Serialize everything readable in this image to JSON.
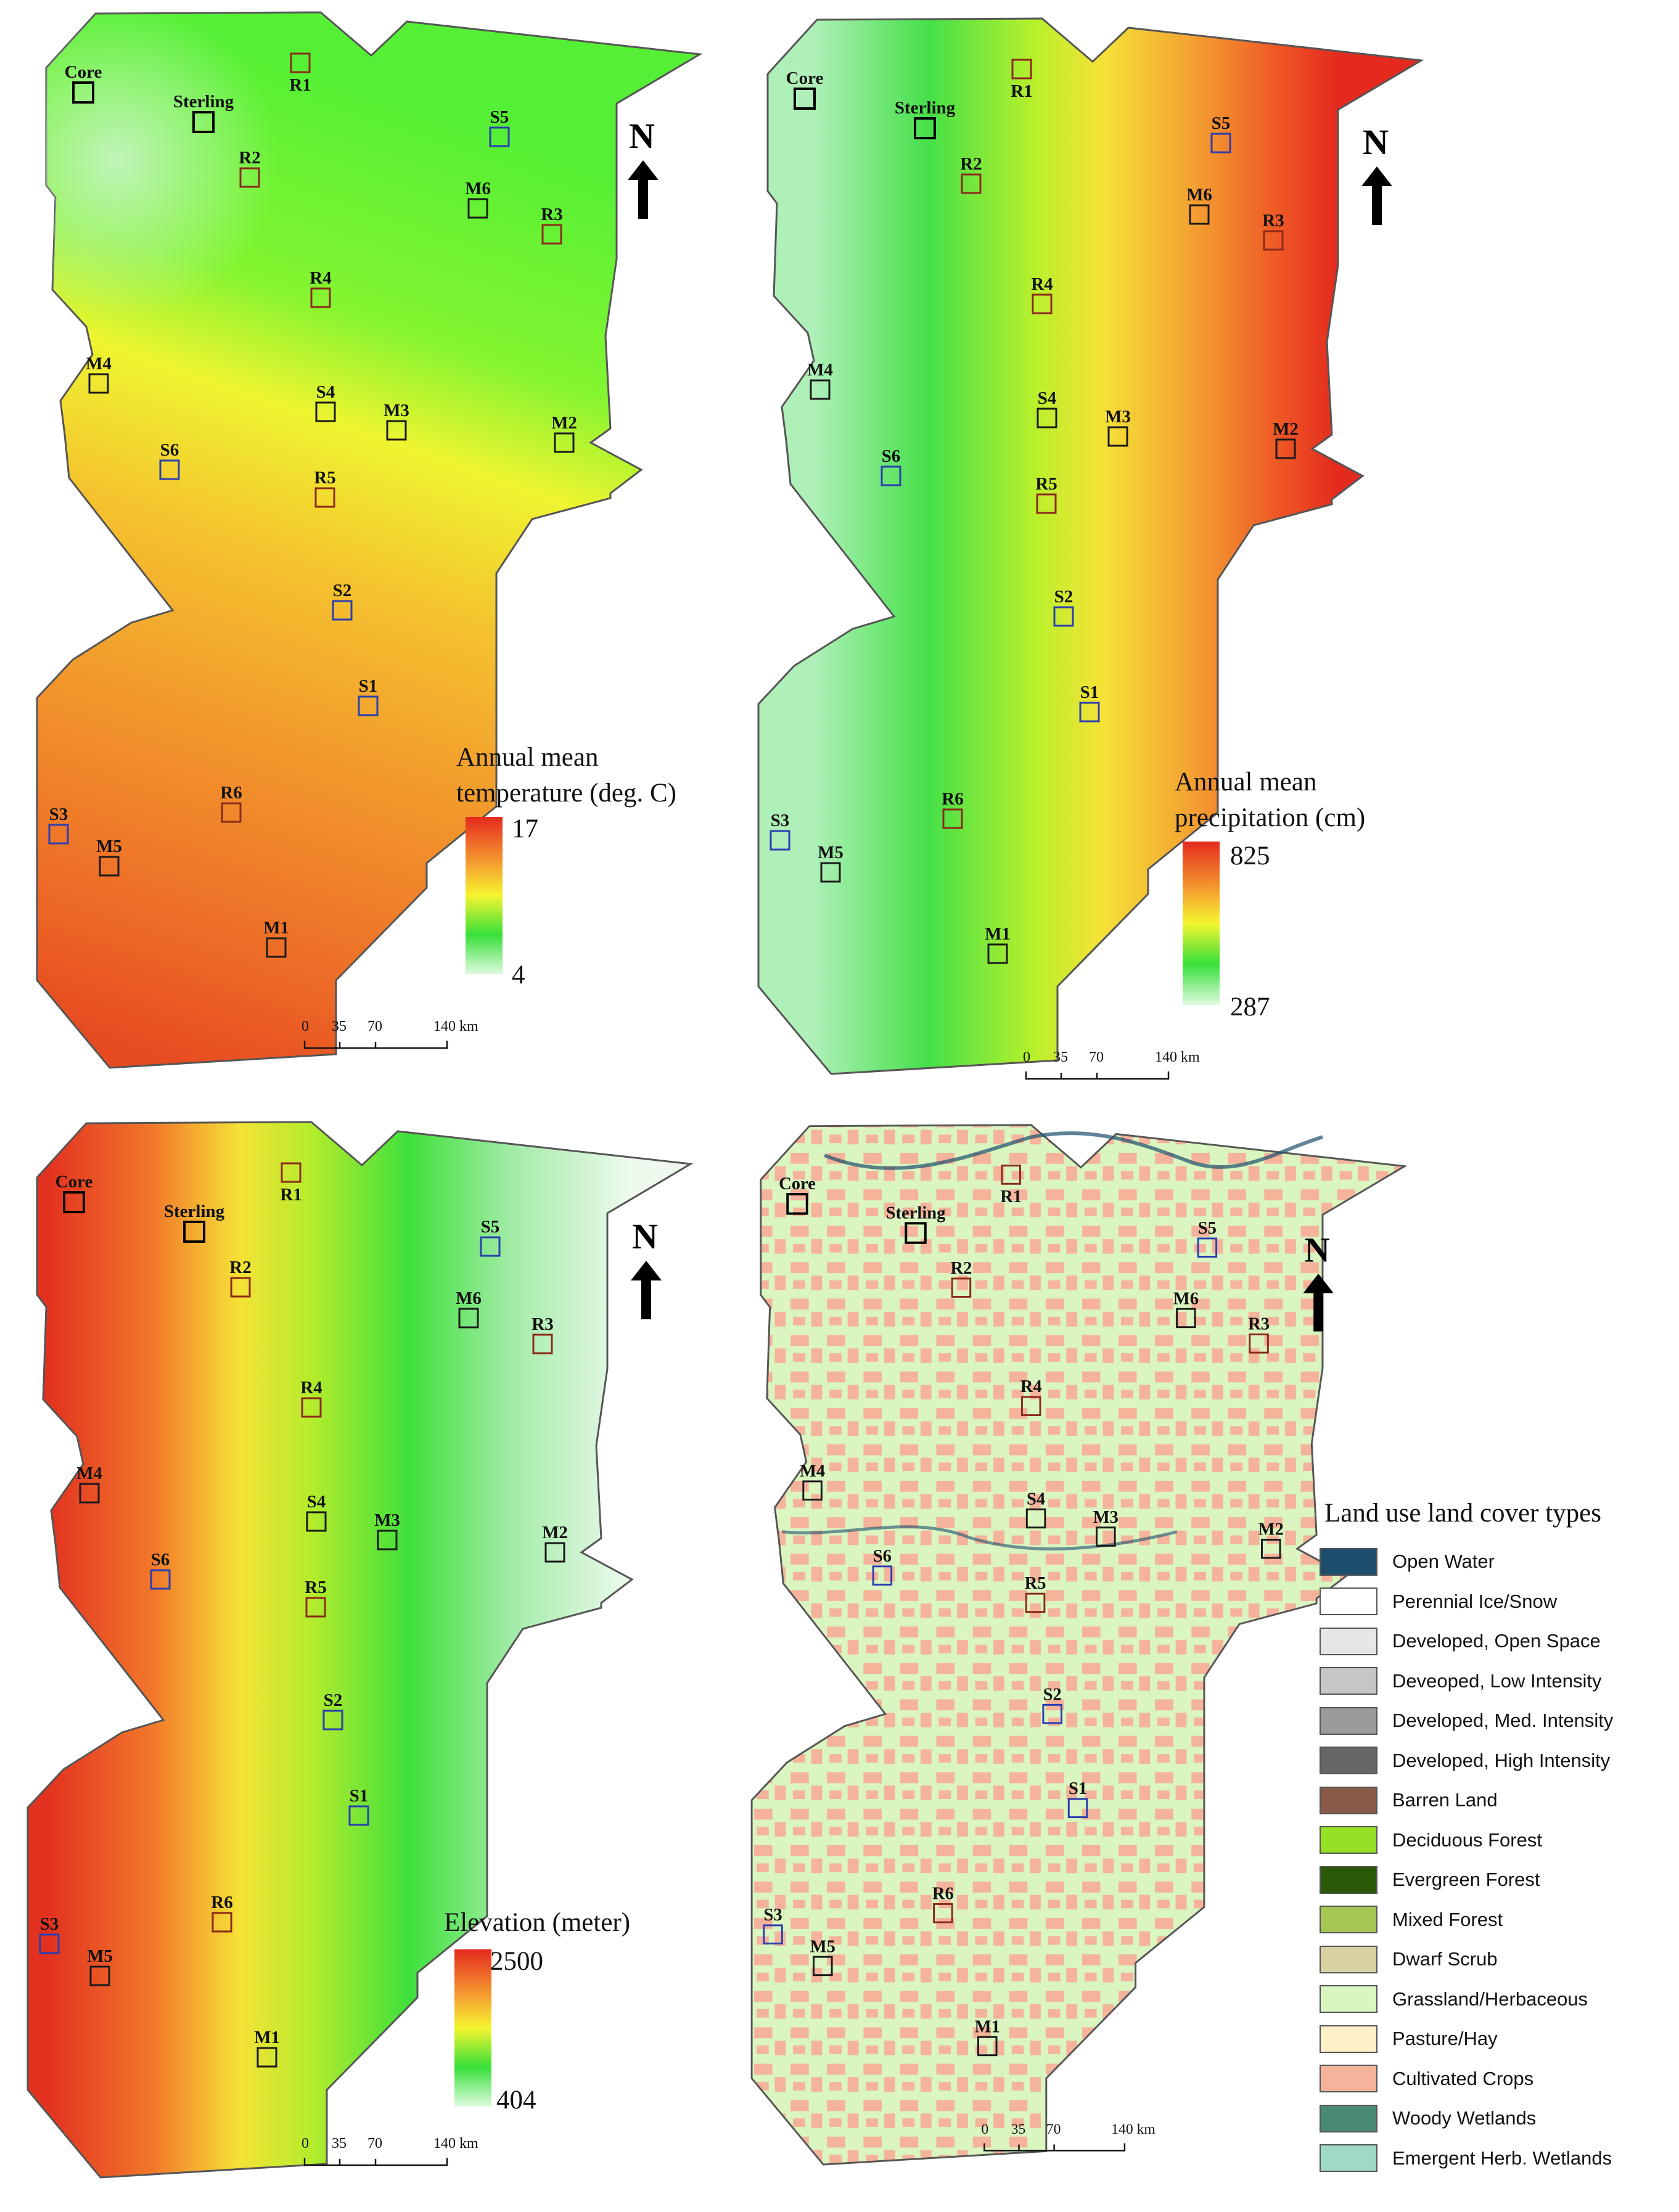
{
  "panels": [
    {
      "id": "temperature",
      "title_lines": [
        "Annual mean",
        "temperature (deg. C)"
      ],
      "ramp_max": "17",
      "ramp_min": "4",
      "north": "N",
      "scale_labels": [
        "0",
        "35",
        "70",
        "140 km"
      ]
    },
    {
      "id": "precipitation",
      "title_lines": [
        "Annual mean",
        "precipitation (cm)"
      ],
      "ramp_max": "825",
      "ramp_min": "287",
      "north": "N",
      "scale_labels": [
        "0",
        "35",
        "70",
        "140 km"
      ]
    },
    {
      "id": "elevation",
      "title_lines": [
        "Elevation (meter)"
      ],
      "ramp_max": "2500",
      "ramp_min": "404",
      "north": "N",
      "scale_labels": [
        "0",
        "35",
        "70",
        "140 km"
      ]
    },
    {
      "id": "landcover",
      "title_lines": [],
      "north": "N",
      "scale_labels": [
        "0",
        "35",
        "70",
        "140 km"
      ]
    }
  ],
  "sites": [
    {
      "id": "Core",
      "type": "core"
    },
    {
      "id": "Sterling",
      "type": "core"
    },
    {
      "id": "R1",
      "type": "R"
    },
    {
      "id": "R2",
      "type": "R"
    },
    {
      "id": "R3",
      "type": "R"
    },
    {
      "id": "R4",
      "type": "R"
    },
    {
      "id": "R5",
      "type": "R"
    },
    {
      "id": "R6",
      "type": "R"
    },
    {
      "id": "S1",
      "type": "S"
    },
    {
      "id": "S2",
      "type": "S"
    },
    {
      "id": "S3",
      "type": "S"
    },
    {
      "id": "S4",
      "type": "S4"
    },
    {
      "id": "S5",
      "type": "S"
    },
    {
      "id": "S6",
      "type": "S"
    },
    {
      "id": "M1",
      "type": "M"
    },
    {
      "id": "M2",
      "type": "M"
    },
    {
      "id": "M3",
      "type": "M"
    },
    {
      "id": "M4",
      "type": "M"
    },
    {
      "id": "M5",
      "type": "M"
    },
    {
      "id": "M6",
      "type": "M"
    }
  ],
  "colors": {
    "R_site": "#8b2a1a",
    "S_site": "#2a3fb0",
    "M_site": "#1a1a1a",
    "core_site": "#000000",
    "outline": "#555555"
  },
  "land_cover_legend": {
    "title": "Land use land cover types",
    "items": [
      {
        "label": "Open Water",
        "color": "#1d4e6e"
      },
      {
        "label": "Perennial Ice/Snow",
        "color": "#ffffff"
      },
      {
        "label": "Developed, Open Space",
        "color": "#e6e6e6"
      },
      {
        "label": "Deveoped, Low Intensity",
        "color": "#c6c6c6"
      },
      {
        "label": "Developed, Med. Intensity",
        "color": "#9b9b9b"
      },
      {
        "label": "Developed, High Intensity",
        "color": "#666666"
      },
      {
        "label": "Barren Land",
        "color": "#8a5a48"
      },
      {
        "label": "Deciduous Forest",
        "color": "#96e026"
      },
      {
        "label": "Evergreen Forest",
        "color": "#2a5a08"
      },
      {
        "label": "Mixed Forest",
        "color": "#a4c652"
      },
      {
        "label": "Dwarf Scrub",
        "color": "#d8d2a2"
      },
      {
        "label": "Grassland/Herbaceous",
        "color": "#daf5c0"
      },
      {
        "label": "Pasture/Hay",
        "color": "#fff0c8"
      },
      {
        "label": "Cultivated Crops",
        "color": "#f4b39a"
      },
      {
        "label": "Woody Wetlands",
        "color": "#4a8a72"
      },
      {
        "label": "Emergent Herb. Wetlands",
        "color": "#9fd9c8"
      }
    ]
  }
}
